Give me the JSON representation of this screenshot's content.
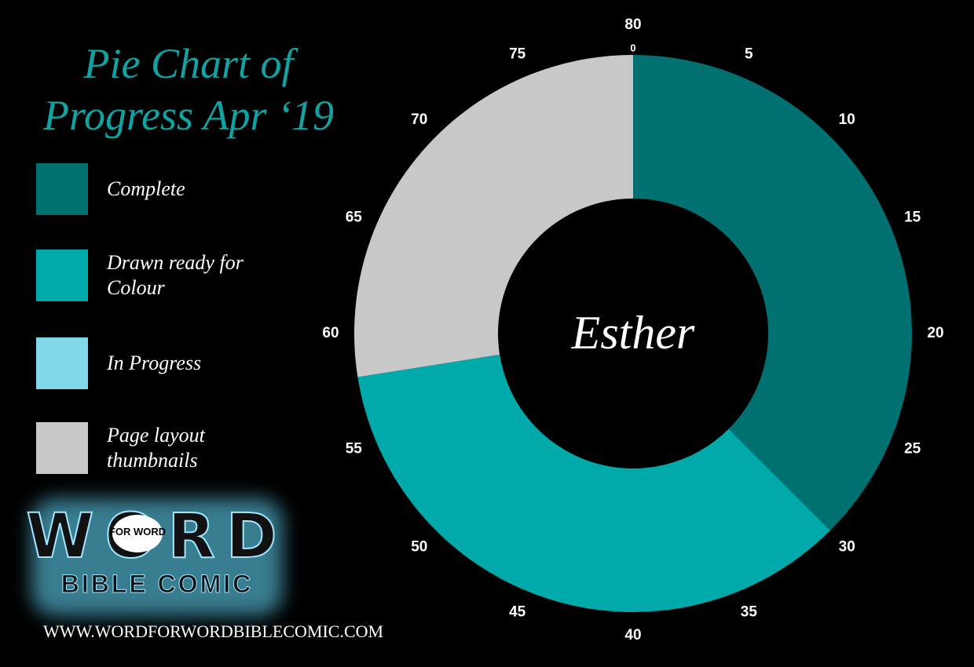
{
  "chart_data": {
    "type": "donut",
    "title": "Pie Chart of Progress Apr ‘19",
    "center_label": "Esther",
    "categories": [
      "Complete",
      "Drawn ready for Colour",
      "In Progress",
      "Page layout thumbnails"
    ],
    "values": [
      30,
      28,
      0,
      22
    ],
    "colors": [
      "#007070",
      "#00aaaa",
      "#80d8e8",
      "#c8c8c8"
    ],
    "thetalim": [
      0,
      80
    ],
    "thetaticks": [
      0,
      5,
      10,
      15,
      20,
      25,
      30,
      35,
      40,
      45,
      50,
      55,
      60,
      65,
      70,
      75,
      80
    ],
    "legend": "left"
  },
  "logo": {
    "word": "WORD",
    "for_word": "FOR WORD",
    "bible_comic": "BIBLE COMIC"
  },
  "url": "WWW.WORDFORWORDBIBLECOMIC.COM"
}
